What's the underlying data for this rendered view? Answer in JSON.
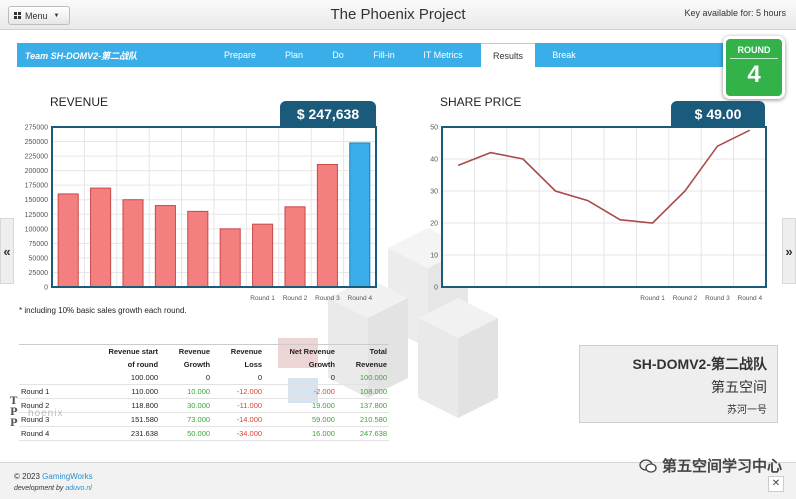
{
  "topbar": {
    "menu_label": "Menu",
    "title": "The Phoenix Project",
    "key_info": "Key available for: 5 hours"
  },
  "nav": {
    "team": "Team SH-DOMV2-第二战队",
    "tabs": [
      {
        "label": "Prepare",
        "active": false
      },
      {
        "label": "Plan",
        "active": false
      },
      {
        "label": "Do",
        "active": false
      },
      {
        "label": "Fill-in",
        "active": false
      },
      {
        "label": "IT Metrics",
        "active": false
      },
      {
        "label": "Results",
        "active": true
      },
      {
        "label": "Break",
        "active": false
      }
    ]
  },
  "round": {
    "label": "ROUND",
    "number": "4"
  },
  "arrows": {
    "left": "«",
    "right": "»"
  },
  "revenue": {
    "title": "REVENUE",
    "value": "$ 247,638",
    "footnote": "* including 10% basic sales growth each round."
  },
  "share": {
    "title": "SHARE PRICE",
    "value": "$ 49.00"
  },
  "chart_data": [
    {
      "type": "bar",
      "title": "REVENUE",
      "ylim": [
        0,
        275000
      ],
      "yticks": [
        0,
        25000,
        50000,
        75000,
        100000,
        125000,
        150000,
        175000,
        200000,
        225000,
        250000,
        275000
      ],
      "values": [
        160000,
        170000,
        150000,
        140000,
        130000,
        100000,
        108000,
        137800,
        210580,
        247638
      ],
      "highlight_last": true,
      "x_labels": [
        "",
        "",
        "",
        "",
        "",
        "",
        "Round 1",
        "Round 2",
        "Round 3",
        "Round 4"
      ],
      "colors": {
        "bar": "#f37f7f",
        "bar_border": "#c84a4a",
        "highlight": "#3aaee8",
        "highlight_border": "#1f7fb7"
      },
      "grid": true
    },
    {
      "type": "line",
      "title": "SHARE PRICE",
      "ylim": [
        0,
        50
      ],
      "yticks": [
        0,
        10,
        20,
        30,
        40,
        50
      ],
      "values": [
        38,
        42,
        40,
        30,
        27,
        21,
        20,
        30,
        44,
        49
      ],
      "x_labels": [
        "",
        "",
        "",
        "",
        "",
        "",
        "Round 1",
        "Round 2",
        "Round 3",
        "Round 4"
      ],
      "colors": {
        "line": "#a84b4b"
      },
      "grid": true
    }
  ],
  "table": {
    "headers": [
      [
        "",
        ""
      ],
      [
        "Revenue start",
        "of round"
      ],
      [
        "Revenue",
        "Growth"
      ],
      [
        "Revenue",
        "Loss"
      ],
      [
        "Net Revenue",
        "Growth"
      ],
      [
        "Total",
        "Revenue"
      ]
    ],
    "rows": [
      [
        "",
        "100.000",
        "0",
        "0",
        "0",
        "100.000"
      ],
      [
        "Round 1",
        "110.000",
        "10.000",
        "-12.000",
        "-2.000",
        "108.000"
      ],
      [
        "Round 2",
        "118.800",
        "30.000",
        "-11.000",
        "19.000",
        "137.800"
      ],
      [
        "Round 3",
        "151.580",
        "73.000",
        "-14.000",
        "59.000",
        "210.580"
      ],
      [
        "Round 4",
        "231.638",
        "50.000",
        "-34.000",
        "16.000",
        "247.638"
      ]
    ]
  },
  "team_card": {
    "name": "SH-DOMV2-第二战队",
    "sub": "第五空间",
    "user": "苏河一号"
  },
  "logo": {
    "letters": [
      "T",
      "P",
      "P"
    ],
    "word": "hoenix"
  },
  "footer": {
    "copyright_prefix": "© 2023 ",
    "copyright_link": "GamingWorks",
    "dev_prefix": "development by ",
    "dev_link": "aduvo.nl"
  },
  "watermark": "第五空间学习中心",
  "close_symbol": "✕"
}
